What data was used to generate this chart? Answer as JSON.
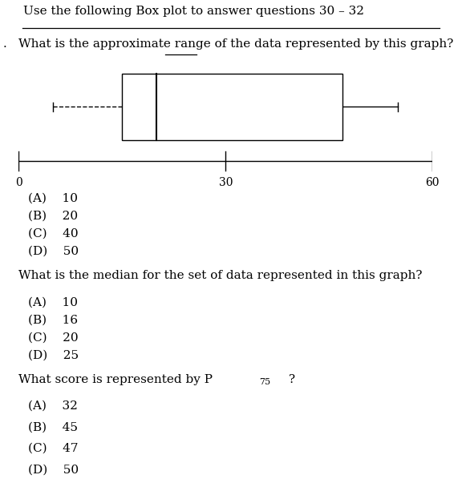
{
  "title": "Use the following Box plot to answer questions 30 – 32",
  "question1_prefix": "What is the approximate ",
  "question1_underlined": "range",
  "question1_suffix": " of the data represented by this graph?",
  "q1_choices": [
    "(A)    10",
    "(B)    20",
    "(C)    40",
    "(D)    50"
  ],
  "question2": "What is the median for the set of data represented in this graph?",
  "q2_choices": [
    "(A)    10",
    "(B)    16",
    "(C)    20",
    "(D)    25"
  ],
  "question3_prefix": "What score is represented by P",
  "question3_sub": "75",
  "question3_suffix": "?",
  "q3_choices": [
    "(A)    32",
    "(B)    45",
    "(C)    47",
    "(D)    50"
  ],
  "boxplot": {
    "min_val": 5,
    "q1": 15,
    "median": 20,
    "q3": 47,
    "max_val": 55,
    "axis_min": 0,
    "axis_max": 60,
    "axis_ticks": [
      0,
      30,
      60
    ]
  },
  "bg_color": "#ffffff",
  "text_color": "#000000",
  "font_size": 11
}
